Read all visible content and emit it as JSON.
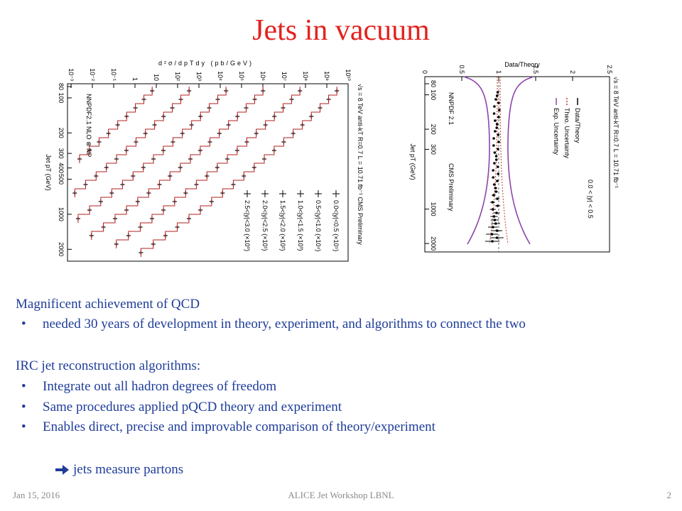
{
  "title": "Jets in vacuum",
  "figures": [
    {
      "header": "√s = 8 TeV   anti-kT R=0.7   L = 10.71 fb⁻¹   CMS Preliminary",
      "y_label": "d²σ/dpTdy (pb/GeV)",
      "x_label": "Jet pT (GeV)",
      "yticks": [
        "10⁻³",
        "10⁻²",
        "10⁻¹",
        "1",
        "10",
        "10²",
        "10³",
        "10⁴",
        "10⁵",
        "10⁶",
        "10⁷",
        "10⁸",
        "10⁹",
        "10¹⁰"
      ],
      "xticks": [
        "80",
        "100",
        "200",
        "300",
        "400",
        "500",
        "1000",
        "2000"
      ],
      "theory": "NNPDF2.1 NLO ⊗ NP",
      "legend": [
        "0.0<|y|<0.5 (×10⁵)",
        "0.5<|y|<1.0 (×10⁴)",
        "1.0<|y|<1.5 (×10³)",
        "1.5<|y|<2.0 (×10²)",
        "2.0<|y|<2.5 (×10¹)",
        "2.5<|y|<3.0 (×10⁰)"
      ]
    },
    {
      "header": "√s = 8 TeV   anti-kT R=0.7   L = 10.71 fb⁻¹",
      "y_label": "Data/Theory",
      "x_label": "Jet pT (GeV)",
      "yticks": [
        "0",
        "0.5",
        "1",
        "1.5",
        "2",
        "2.5"
      ],
      "xticks": [
        "80",
        "100",
        "200",
        "300",
        "1000",
        "2000"
      ],
      "legend": [
        "Data/Theory",
        "Theo. Uncertainty",
        "Exp. Uncertainty"
      ],
      "rapidity": "0.0 < |y| < 0.5",
      "pdf": "NNPDF 2.1",
      "experiment": "CMS Preliminary"
    }
  ],
  "body": {
    "heading1": "Magnificent achievement of QCD",
    "bullets1": [
      "needed 30 years of development in theory, experiment, and algorithms to connect the two"
    ],
    "heading2": "IRC jet reconstruction algorithms:",
    "bullets2": [
      "Integrate out all hadron degrees of freedom",
      "Same procedures applied pQCD theory and experiment",
      "Enables direct, precise and improvable comparison of theory/experiment"
    ],
    "conclusion": "jets measure partons"
  },
  "footer": {
    "date": "Jan 15, 2016",
    "event": "ALICE Jet Workshop LBNL",
    "page": "2"
  }
}
